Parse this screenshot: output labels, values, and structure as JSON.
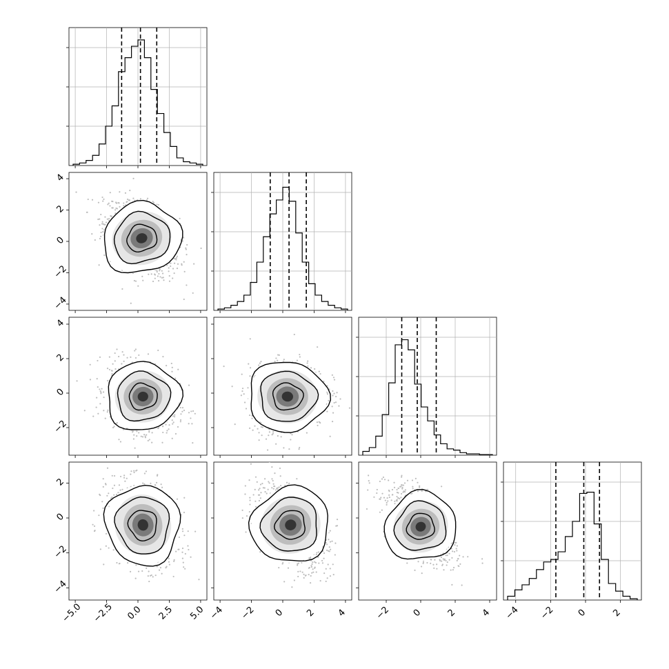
{
  "chart_data": {
    "type": "corner",
    "parameters": 4,
    "axes": {
      "p0": {
        "range": [
          -5.5,
          5.5
        ],
        "ticks": [
          "−5.0",
          "−2.5",
          "0.0",
          "2.5",
          "5.0"
        ],
        "tick_values": [
          -5,
          -2.5,
          0,
          2.5,
          5
        ]
      },
      "p1": {
        "range": [
          -4.4,
          4.4
        ],
        "ticks": [
          "−4",
          "−2",
          "0",
          "2",
          "4"
        ],
        "tick_values": [
          -4,
          -2,
          0,
          2,
          4
        ]
      },
      "p2": {
        "range": [
          -3.6,
          4.4
        ],
        "ticks": [
          "−2",
          "0",
          "2",
          "4"
        ],
        "tick_values": [
          -2,
          0,
          2,
          4
        ]
      },
      "p3": {
        "range": [
          -4.7,
          3.2
        ],
        "ticks": [
          "−4",
          "−2",
          "0",
          "2"
        ],
        "tick_values": [
          -4,
          -2,
          0,
          2
        ]
      }
    },
    "histograms": [
      {
        "param": "p0",
        "quantiles": [
          -1.3,
          0.2,
          1.5
        ],
        "counts": [
          0.01,
          0.02,
          0.04,
          0.08,
          0.17,
          0.31,
          0.47,
          0.74,
          0.85,
          0.94,
          0.99,
          0.85,
          0.6,
          0.41,
          0.26,
          0.15,
          0.06,
          0.03,
          0.02,
          0.01
        ]
      },
      {
        "param": "p1",
        "quantiles": [
          -0.8,
          0.4,
          1.5
        ],
        "counts": [
          0.01,
          0.02,
          0.04,
          0.07,
          0.12,
          0.22,
          0.38,
          0.58,
          0.76,
          0.87,
          0.97,
          0.86,
          0.61,
          0.38,
          0.21,
          0.12,
          0.07,
          0.04,
          0.02,
          0.01
        ]
      },
      {
        "param": "p2",
        "quantiles": [
          -1.1,
          -0.2,
          0.9
        ],
        "counts": [
          0.03,
          0.06,
          0.15,
          0.32,
          0.57,
          0.87,
          0.91,
          0.83,
          0.56,
          0.38,
          0.27,
          0.16,
          0.09,
          0.05,
          0.04,
          0.02,
          0.01,
          0.01,
          0.005,
          0.005
        ]
      },
      {
        "param": "p3",
        "quantiles": [
          -1.7,
          -0.1,
          0.8
        ],
        "counts": [
          0.03,
          0.08,
          0.12,
          0.17,
          0.24,
          0.3,
          0.32,
          0.38,
          0.5,
          0.62,
          0.84,
          0.85,
          0.6,
          0.32,
          0.13,
          0.07,
          0.03,
          0.01
        ]
      }
    ],
    "scatter_panels": [
      {
        "x": "p0",
        "y": "p1",
        "mean": [
          0.3,
          0.2
        ],
        "sigma": [
          1.5,
          1.2
        ],
        "rho": -0.4
      },
      {
        "x": "p0",
        "y": "p2",
        "mean": [
          0.4,
          -0.2
        ],
        "sigma": [
          1.4,
          1.0
        ],
        "rho": -0.2
      },
      {
        "x": "p1",
        "y": "p2",
        "mean": [
          0.3,
          -0.2
        ],
        "sigma": [
          1.2,
          1.0
        ],
        "rho": 0.1
      },
      {
        "x": "p0",
        "y": "p3",
        "mean": [
          0.4,
          -0.4
        ],
        "sigma": [
          1.4,
          1.2
        ],
        "rho": -0.3
      },
      {
        "x": "p1",
        "y": "p3",
        "mean": [
          0.5,
          -0.4
        ],
        "sigma": [
          1.2,
          1.2
        ],
        "rho": -0.5
      },
      {
        "x": "p2",
        "y": "p3",
        "mean": [
          0.0,
          -0.5
        ],
        "sigma": [
          1.0,
          1.1
        ],
        "rho": -0.55
      }
    ],
    "grid": true,
    "contour_levels": [
      "inner",
      "middle",
      "outer"
    ]
  }
}
